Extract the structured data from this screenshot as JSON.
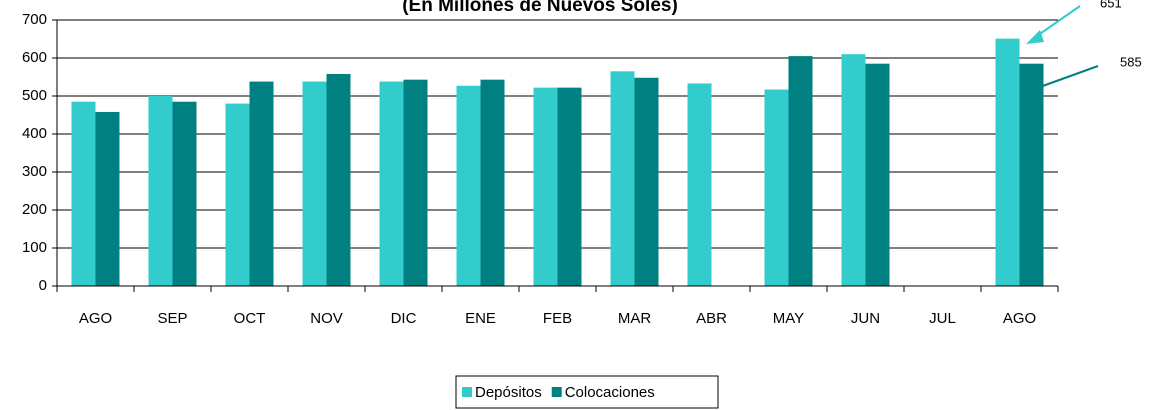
{
  "chart_data": {
    "type": "bar",
    "title": "(En Millones de Nuevos Soles)",
    "categories": [
      "AGO",
      "SEP",
      "OCT",
      "NOV",
      "DIC",
      "ENE",
      "FEB",
      "MAR",
      "ABR",
      "MAY",
      "JUN",
      "JUL",
      "AGO"
    ],
    "series": [
      {
        "name": "Depósitos",
        "color": "#33cccc",
        "values": [
          485,
          500,
          480,
          538,
          538,
          527,
          522,
          565,
          533,
          517,
          610,
          null,
          651
        ]
      },
      {
        "name": "Colocaciones",
        "color": "#008080",
        "values": [
          458,
          485,
          538,
          558,
          543,
          543,
          522,
          548,
          null,
          605,
          585,
          null,
          585
        ]
      }
    ],
    "ylim": [
      0,
      700
    ],
    "yticks": [
      0,
      100,
      200,
      300,
      400,
      500,
      600,
      700
    ],
    "grid": true,
    "legend": "bottom"
  }
}
